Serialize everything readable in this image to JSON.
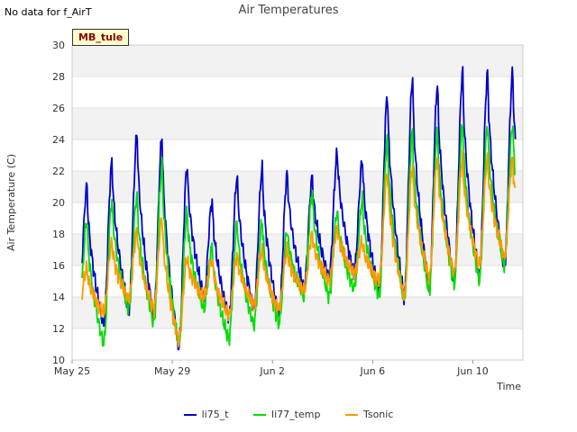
{
  "header": {
    "no_data": "No data for f_AirT",
    "title": "Air Temperatures"
  },
  "badge": "MB_tule",
  "chart_data": {
    "type": "line",
    "title": "Air Temperatures",
    "xlabel": "Time",
    "ylabel": "Air Temperature (C)",
    "ylim": [
      10,
      30
    ],
    "xlim": [
      0,
      18
    ],
    "yticks": [
      10,
      12,
      14,
      16,
      18,
      20,
      22,
      24,
      26,
      28,
      30
    ],
    "xticks": [
      {
        "label": "May 25",
        "x": 0
      },
      {
        "label": "May 29",
        "x": 4
      },
      {
        "label": "Jun 2",
        "x": 8
      },
      {
        "label": "Jun 6",
        "x": 12
      },
      {
        "label": "Jun 10",
        "x": 16
      }
    ],
    "grid": true,
    "legend": "bottom-center",
    "series": [
      {
        "name": "li75_t",
        "color": "#0000cc",
        "lows": [
          13.3,
          12.2,
          13.2,
          12.8,
          10.8,
          14.0,
          12.7,
          13.2,
          12.8,
          14.5,
          15.2,
          15.5,
          14.3,
          14.0,
          14.5,
          15.0,
          15.3,
          15.8
        ],
        "highs": [
          21.0,
          22.6,
          24.4,
          24.2,
          22.4,
          20.1,
          21.7,
          22.2,
          21.9,
          21.6,
          23.2,
          22.7,
          27.0,
          27.9,
          27.6,
          28.3
        ]
      },
      {
        "name": "li77_temp",
        "color": "#00dd00",
        "lows": [
          12.5,
          11.0,
          13.2,
          12.3,
          11.0,
          13.2,
          11.3,
          12.2,
          12.3,
          14.0,
          14.0,
          14.5,
          14.0,
          13.8,
          14.3,
          14.8,
          15.0,
          16.0
        ],
        "highs": [
          18.9,
          20.2,
          20.5,
          22.4,
          19.4,
          17.2,
          18.8,
          18.8,
          18.3,
          20.6,
          19.5,
          20.2,
          24.1,
          24.5,
          24.6,
          25.0
        ]
      },
      {
        "name": "Tsonic",
        "color": "#ff9900",
        "lows": [
          13.3,
          13.0,
          13.8,
          13.2,
          11.2,
          14.0,
          12.8,
          13.5,
          13.2,
          14.4,
          15.0,
          15.5,
          15.0,
          14.0,
          15.2,
          15.5,
          16.0,
          16.5
        ],
        "highs": [
          15.8,
          17.5,
          18.2,
          19.1,
          16.5,
          16.4,
          16.7,
          17.0,
          17.0,
          18.0,
          18.4,
          17.5,
          22.0,
          22.3,
          22.8,
          22.8
        ]
      }
    ]
  }
}
